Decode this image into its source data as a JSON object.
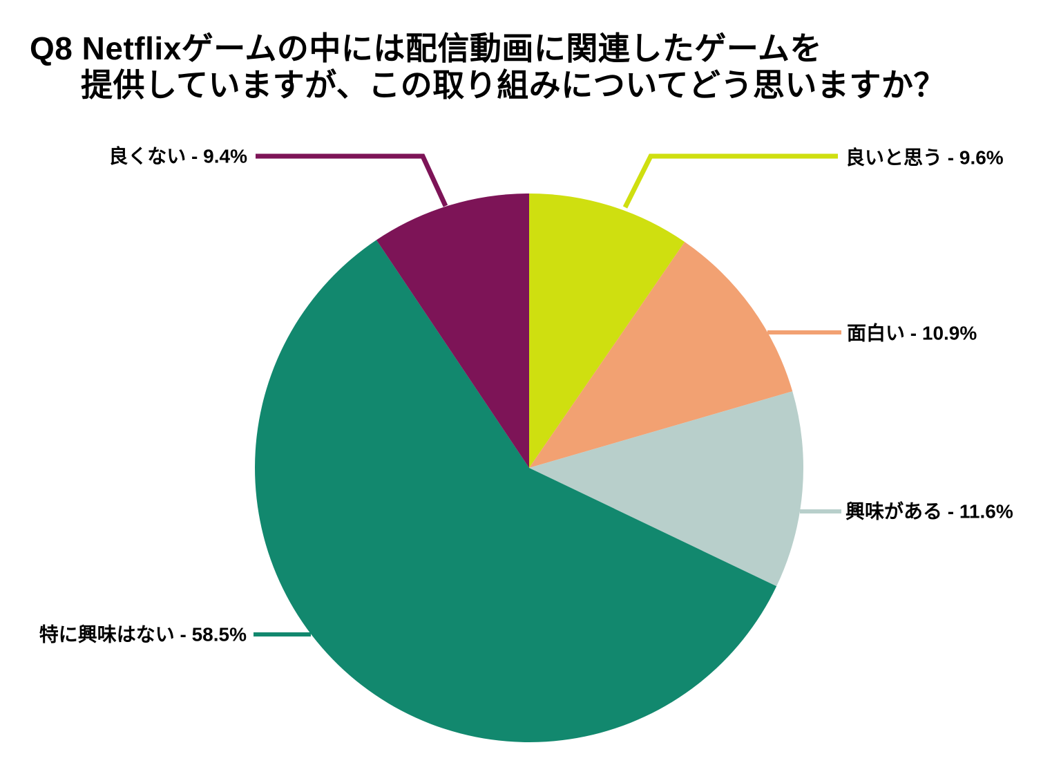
{
  "title": {
    "line1": "Q8 Netflixゲームの中には配信動画に関連したゲームを",
    "line2": "提供していますが、この取り組みについてどう思いますか？"
  },
  "chart_data": {
    "type": "pie",
    "title": "Q8 Netflixゲームの中には配信動画に関連したゲームを提供していますが、この取り組みについてどう思いますか？",
    "start_angle_deg": 0,
    "direction": "clockwise",
    "unit": "%",
    "slices": [
      {
        "label": "良いと思う",
        "value": 9.6,
        "display": "良いと思う - 9.6%",
        "color": "#cfdf10"
      },
      {
        "label": "面白い",
        "value": 10.9,
        "display": "面白い - 10.9%",
        "color": "#f2a172"
      },
      {
        "label": "興味がある",
        "value": 11.6,
        "display": "興味がある - 11.6%",
        "color": "#b8cfcb"
      },
      {
        "label": "特に興味はない",
        "value": 58.5,
        "display": "特に興味はない - 58.5%",
        "color": "#12886e"
      },
      {
        "label": "良くない",
        "value": 9.4,
        "display": "良くない - 9.4%",
        "color": "#7d1457"
      }
    ],
    "background_color": "#ffffff",
    "text_color": "#000000"
  }
}
